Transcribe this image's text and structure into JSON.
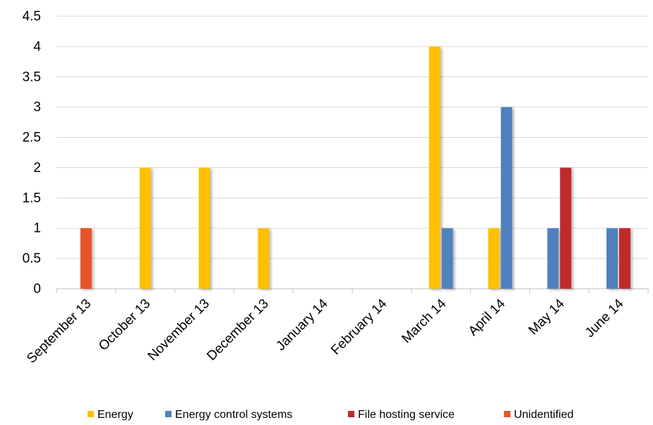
{
  "chart_data": {
    "type": "bar",
    "title": "",
    "xlabel": "",
    "ylabel": "",
    "ylim": [
      0,
      4.5
    ],
    "y_ticks": [
      "0",
      "0.5",
      "1",
      "1.5",
      "2",
      "2.5",
      "3",
      "3.5",
      "4",
      "4.5"
    ],
    "y_tick_values": [
      0,
      0.5,
      1,
      1.5,
      2,
      2.5,
      3,
      3.5,
      4,
      4.5
    ],
    "grid": "horizontal",
    "legend_position": "bottom",
    "categories": [
      "September 13",
      "October 13",
      "November 13",
      "December 13",
      "January 14",
      "February 14",
      "March 14",
      "April 14",
      "May 14",
      "June 14"
    ],
    "series": [
      {
        "name": "Energy",
        "color": "#FFC000",
        "values": [
          0,
          2,
          2,
          1,
          0,
          0,
          4,
          1,
          0,
          0
        ]
      },
      {
        "name": "Energy control systems",
        "color": "#4F81BD",
        "values": [
          0,
          0,
          0,
          0,
          0,
          0,
          1,
          3,
          1,
          1
        ]
      },
      {
        "name": "File hosting service",
        "color": "#C0292B",
        "values": [
          0,
          0,
          0,
          0,
          0,
          0,
          0,
          0,
          2,
          1
        ]
      },
      {
        "name": "Unidentified",
        "color": "#E8532B",
        "values": [
          1,
          0,
          0,
          0,
          0,
          0,
          0,
          0,
          0,
          0
        ]
      }
    ]
  }
}
